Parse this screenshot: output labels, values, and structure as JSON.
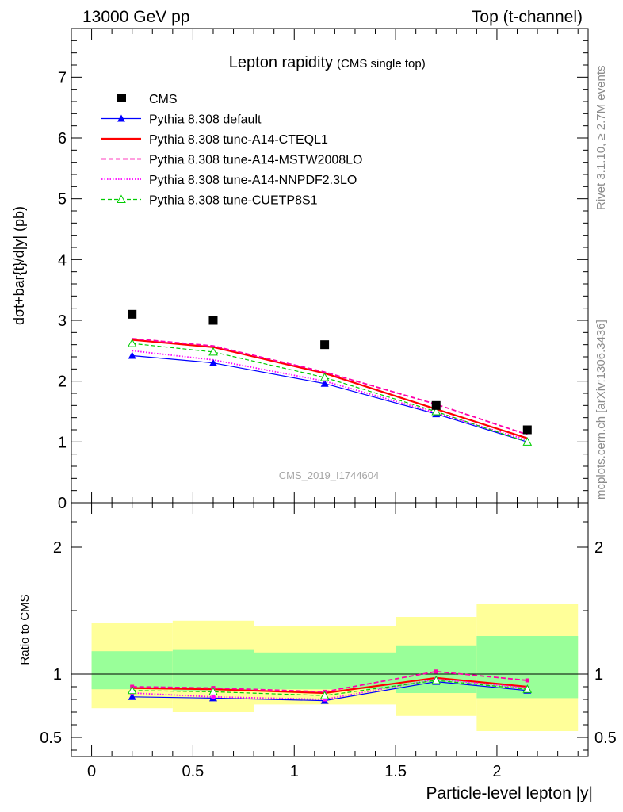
{
  "header": {
    "left": "13000 GeV pp",
    "right": "Top (t-channel)"
  },
  "side_labels": {
    "rivet": "Rivet 3.1.10, ≥ 2.7M events",
    "mcplots": "mcplots.cern.ch [arXiv:1306.3436]"
  },
  "chart_data": [
    {
      "type": "line",
      "title": "Lepton rapidity",
      "subtitle": "(CMS single top)",
      "ylabel": "dσt+bar{t}/d|y|  (pb)",
      "watermark": "CMS_2019_I1744604",
      "xlim": [
        -0.1,
        2.45
      ],
      "ylim": [
        0,
        7.8
      ],
      "yticks": [
        "0",
        "1",
        "2",
        "3",
        "4",
        "5",
        "6",
        "7"
      ],
      "grid": false,
      "legend_position": "top-left",
      "x": [
        0.2,
        0.6,
        1.15,
        1.7,
        2.15
      ],
      "bin_edges": [
        0,
        0.4,
        0.8,
        1.5,
        1.9,
        2.4
      ],
      "data": {
        "name": "CMS",
        "values": [
          3.1,
          3.0,
          2.6,
          1.6,
          1.2
        ]
      },
      "series": [
        {
          "name": "Pythia 8.308 default",
          "color": "#0000ff",
          "style": "solid",
          "marker": "triangle-filled",
          "values": [
            2.42,
            2.3,
            1.96,
            1.46,
            1.0
          ]
        },
        {
          "name": "Pythia 8.308 tune-A14-CTEQL1",
          "color": "#ff0000",
          "style": "solid-thick",
          "marker": "none",
          "values": [
            2.68,
            2.56,
            2.13,
            1.54,
            1.06
          ]
        },
        {
          "name": "Pythia 8.308 tune-A14-MSTW2008LO",
          "color": "#ff00aa",
          "style": "dashed",
          "marker": "none",
          "values": [
            2.7,
            2.58,
            2.15,
            1.62,
            1.12
          ]
        },
        {
          "name": "Pythia 8.308 tune-A14-NNPDF2.3LO",
          "color": "#ff00ff",
          "style": "dotted",
          "marker": "none",
          "values": [
            2.5,
            2.35,
            2.0,
            1.48,
            1.03
          ]
        },
        {
          "name": "Pythia 8.308 tune-CUETP8S1",
          "color": "#00cc00",
          "style": "dashed-fine",
          "marker": "triangle-open",
          "values": [
            2.62,
            2.48,
            2.06,
            1.5,
            1.0
          ]
        }
      ]
    },
    {
      "type": "line",
      "ylabel": "Ratio to CMS",
      "xlabel": "Particle-level lepton |y|",
      "xlim": [
        -0.1,
        2.45
      ],
      "ylim": [
        0.35,
        2.35
      ],
      "xticks": [
        "0",
        "0.5",
        "1",
        "1.5",
        "2"
      ],
      "yticks": [
        "0.5",
        "1",
        "2"
      ],
      "x": [
        0.2,
        0.6,
        1.15,
        1.7,
        2.15
      ],
      "bands": {
        "bin_edges": [
          0,
          0.4,
          0.8,
          1.5,
          1.9,
          2.4
        ],
        "outer_lo": [
          0.73,
          0.7,
          0.76,
          0.67,
          0.55
        ],
        "outer_hi": [
          1.4,
          1.42,
          1.38,
          1.45,
          1.55
        ],
        "inner_lo": [
          0.88,
          0.87,
          0.88,
          0.85,
          0.81
        ],
        "inner_hi": [
          1.18,
          1.19,
          1.17,
          1.22,
          1.3
        ]
      },
      "series": [
        {
          "name": "Pythia 8.308 default",
          "values": [
            0.82,
            0.81,
            0.79,
            0.94,
            0.87
          ]
        },
        {
          "name": "Pythia 8.308 tune-A14-CTEQL1",
          "values": [
            0.89,
            0.88,
            0.85,
            0.97,
            0.9
          ]
        },
        {
          "name": "Pythia 8.308 tune-A14-MSTW2008LO",
          "values": [
            0.9,
            0.89,
            0.86,
            1.02,
            0.95
          ]
        },
        {
          "name": "Pythia 8.308 tune-A14-NNPDF2.3LO",
          "values": [
            0.85,
            0.82,
            0.8,
            0.96,
            0.89
          ]
        },
        {
          "name": "Pythia 8.308 tune-CUETP8S1",
          "values": [
            0.87,
            0.86,
            0.83,
            0.95,
            0.88
          ]
        }
      ]
    }
  ]
}
